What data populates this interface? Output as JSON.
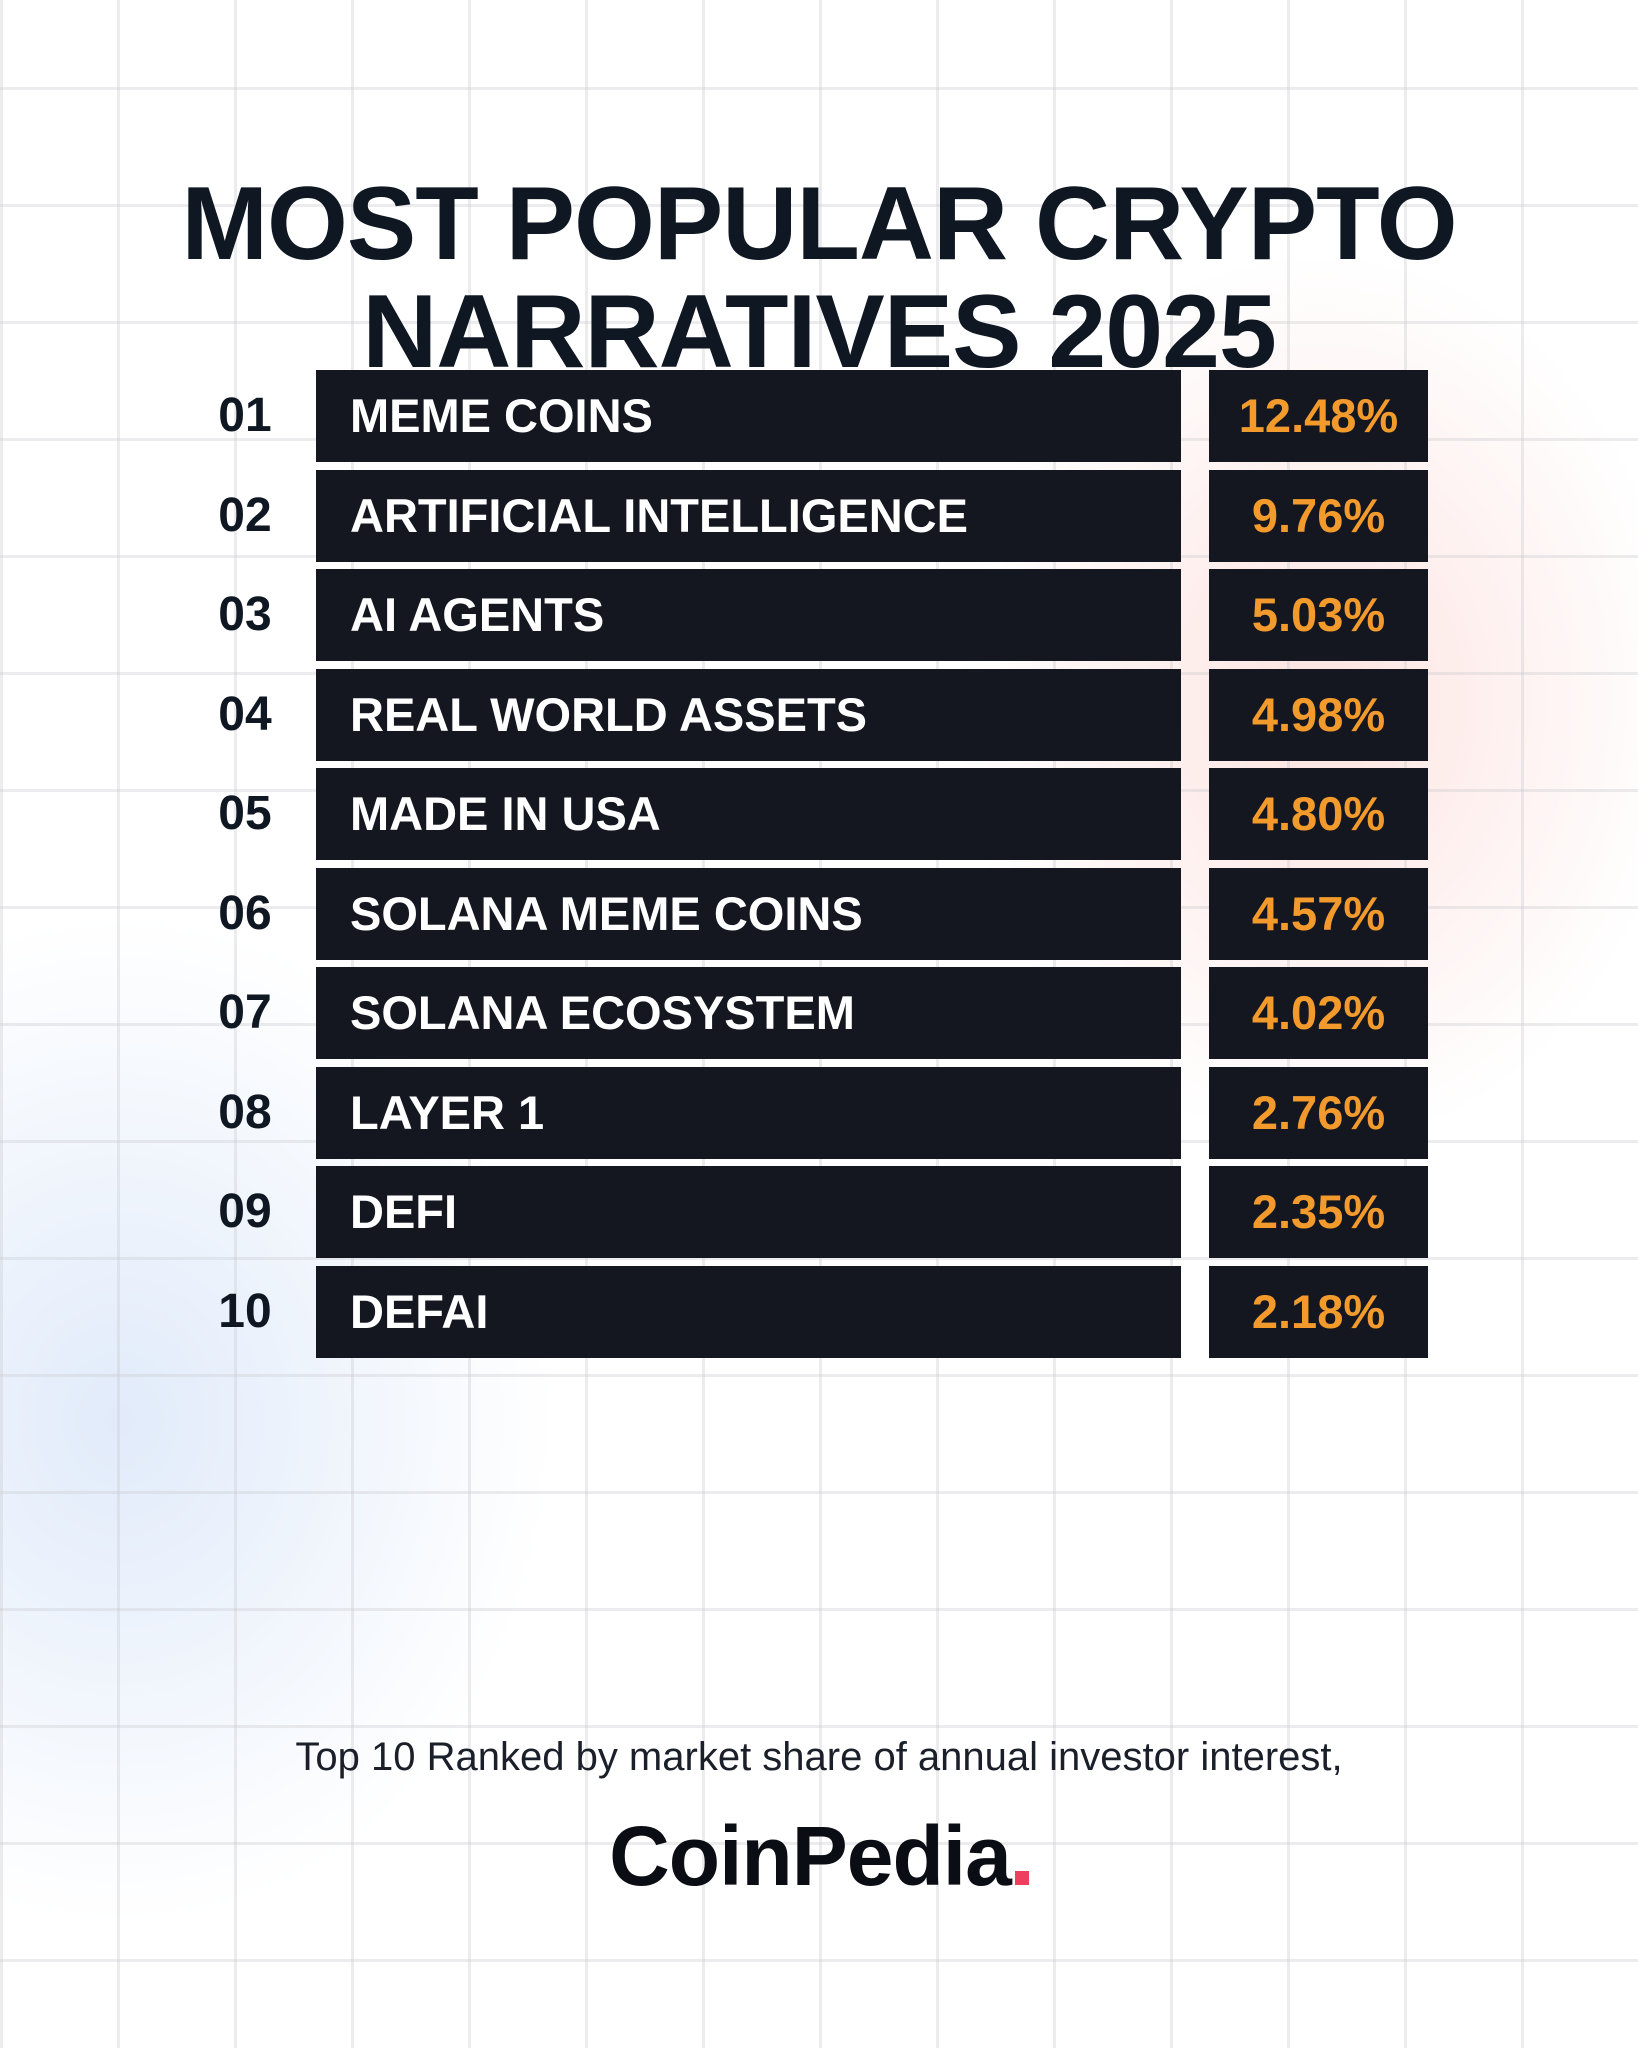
{
  "title": {
    "line1": "MOST POPULAR CRYPTO",
    "line2": "NARRATIVES 2025"
  },
  "colors": {
    "bar": "#141720",
    "value": "#f39a2c",
    "accent": "#ef3f5e",
    "text": "#0f1722"
  },
  "chart_data": {
    "type": "table",
    "title": "MOST POPULAR CRYPTO NARRATIVES 2025",
    "columns": [
      "rank",
      "narrative",
      "share"
    ],
    "rows": [
      {
        "rank": "01",
        "label": "MEME COINS",
        "value": "12.48%",
        "share": 12.48
      },
      {
        "rank": "02",
        "label": "ARTIFICIAL INTELLIGENCE",
        "value": "9.76%",
        "share": 9.76
      },
      {
        "rank": "03",
        "label": "AI AGENTS",
        "value": "5.03%",
        "share": 5.03
      },
      {
        "rank": "04",
        "label": "REAL WORLD ASSETS",
        "value": "4.98%",
        "share": 4.98
      },
      {
        "rank": "05",
        "label": "MADE IN USA",
        "value": "4.80%",
        "share": 4.8
      },
      {
        "rank": "06",
        "label": "SOLANA MEME COINS",
        "value": "4.57%",
        "share": 4.57
      },
      {
        "rank": "07",
        "label": "SOLANA ECOSYSTEM",
        "value": "4.02%",
        "share": 4.02
      },
      {
        "rank": "08",
        "label": "LAYER 1",
        "value": "2.76%",
        "share": 2.76
      },
      {
        "rank": "09",
        "label": "DEFI",
        "value": "2.35%",
        "share": 2.35
      },
      {
        "rank": "10",
        "label": "DEFAI",
        "value": "2.18%",
        "share": 2.18
      }
    ]
  },
  "footnote": "Top 10 Ranked by market share of annual investor interest,",
  "logo": {
    "text": "CoinPedia",
    "dot": "."
  }
}
